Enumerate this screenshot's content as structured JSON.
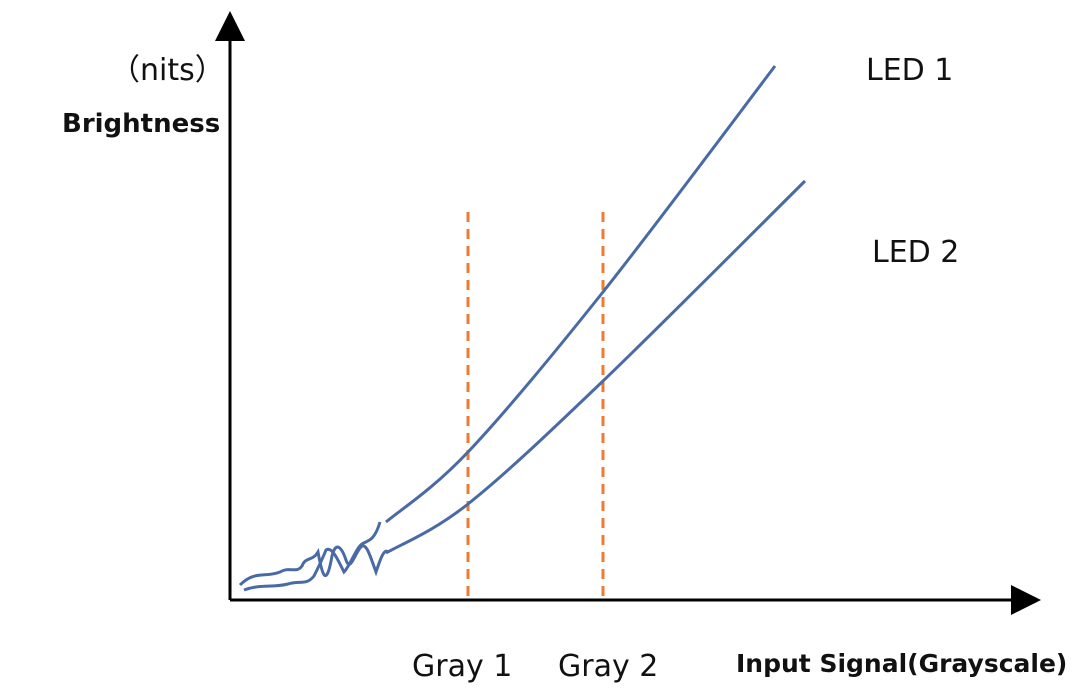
{
  "chart_data": {
    "type": "line",
    "title": "",
    "ylabel": "Brightness",
    "yunit": "（nits）",
    "xlabel": "Input Signal(Grayscale)",
    "grid": false,
    "annotations": [
      {
        "text": "Gray 1"
      },
      {
        "text": "Gray 2"
      }
    ],
    "series": [
      {
        "name": "LED 1",
        "color": "#4a6aa5"
      },
      {
        "name": "LED 2",
        "color": "#4a6aa5"
      }
    ],
    "reference_lines": {
      "color": "#f07a30",
      "style": "dashed",
      "labels": [
        "Gray 1",
        "Gray 2"
      ]
    },
    "axis_color": "#000000"
  }
}
